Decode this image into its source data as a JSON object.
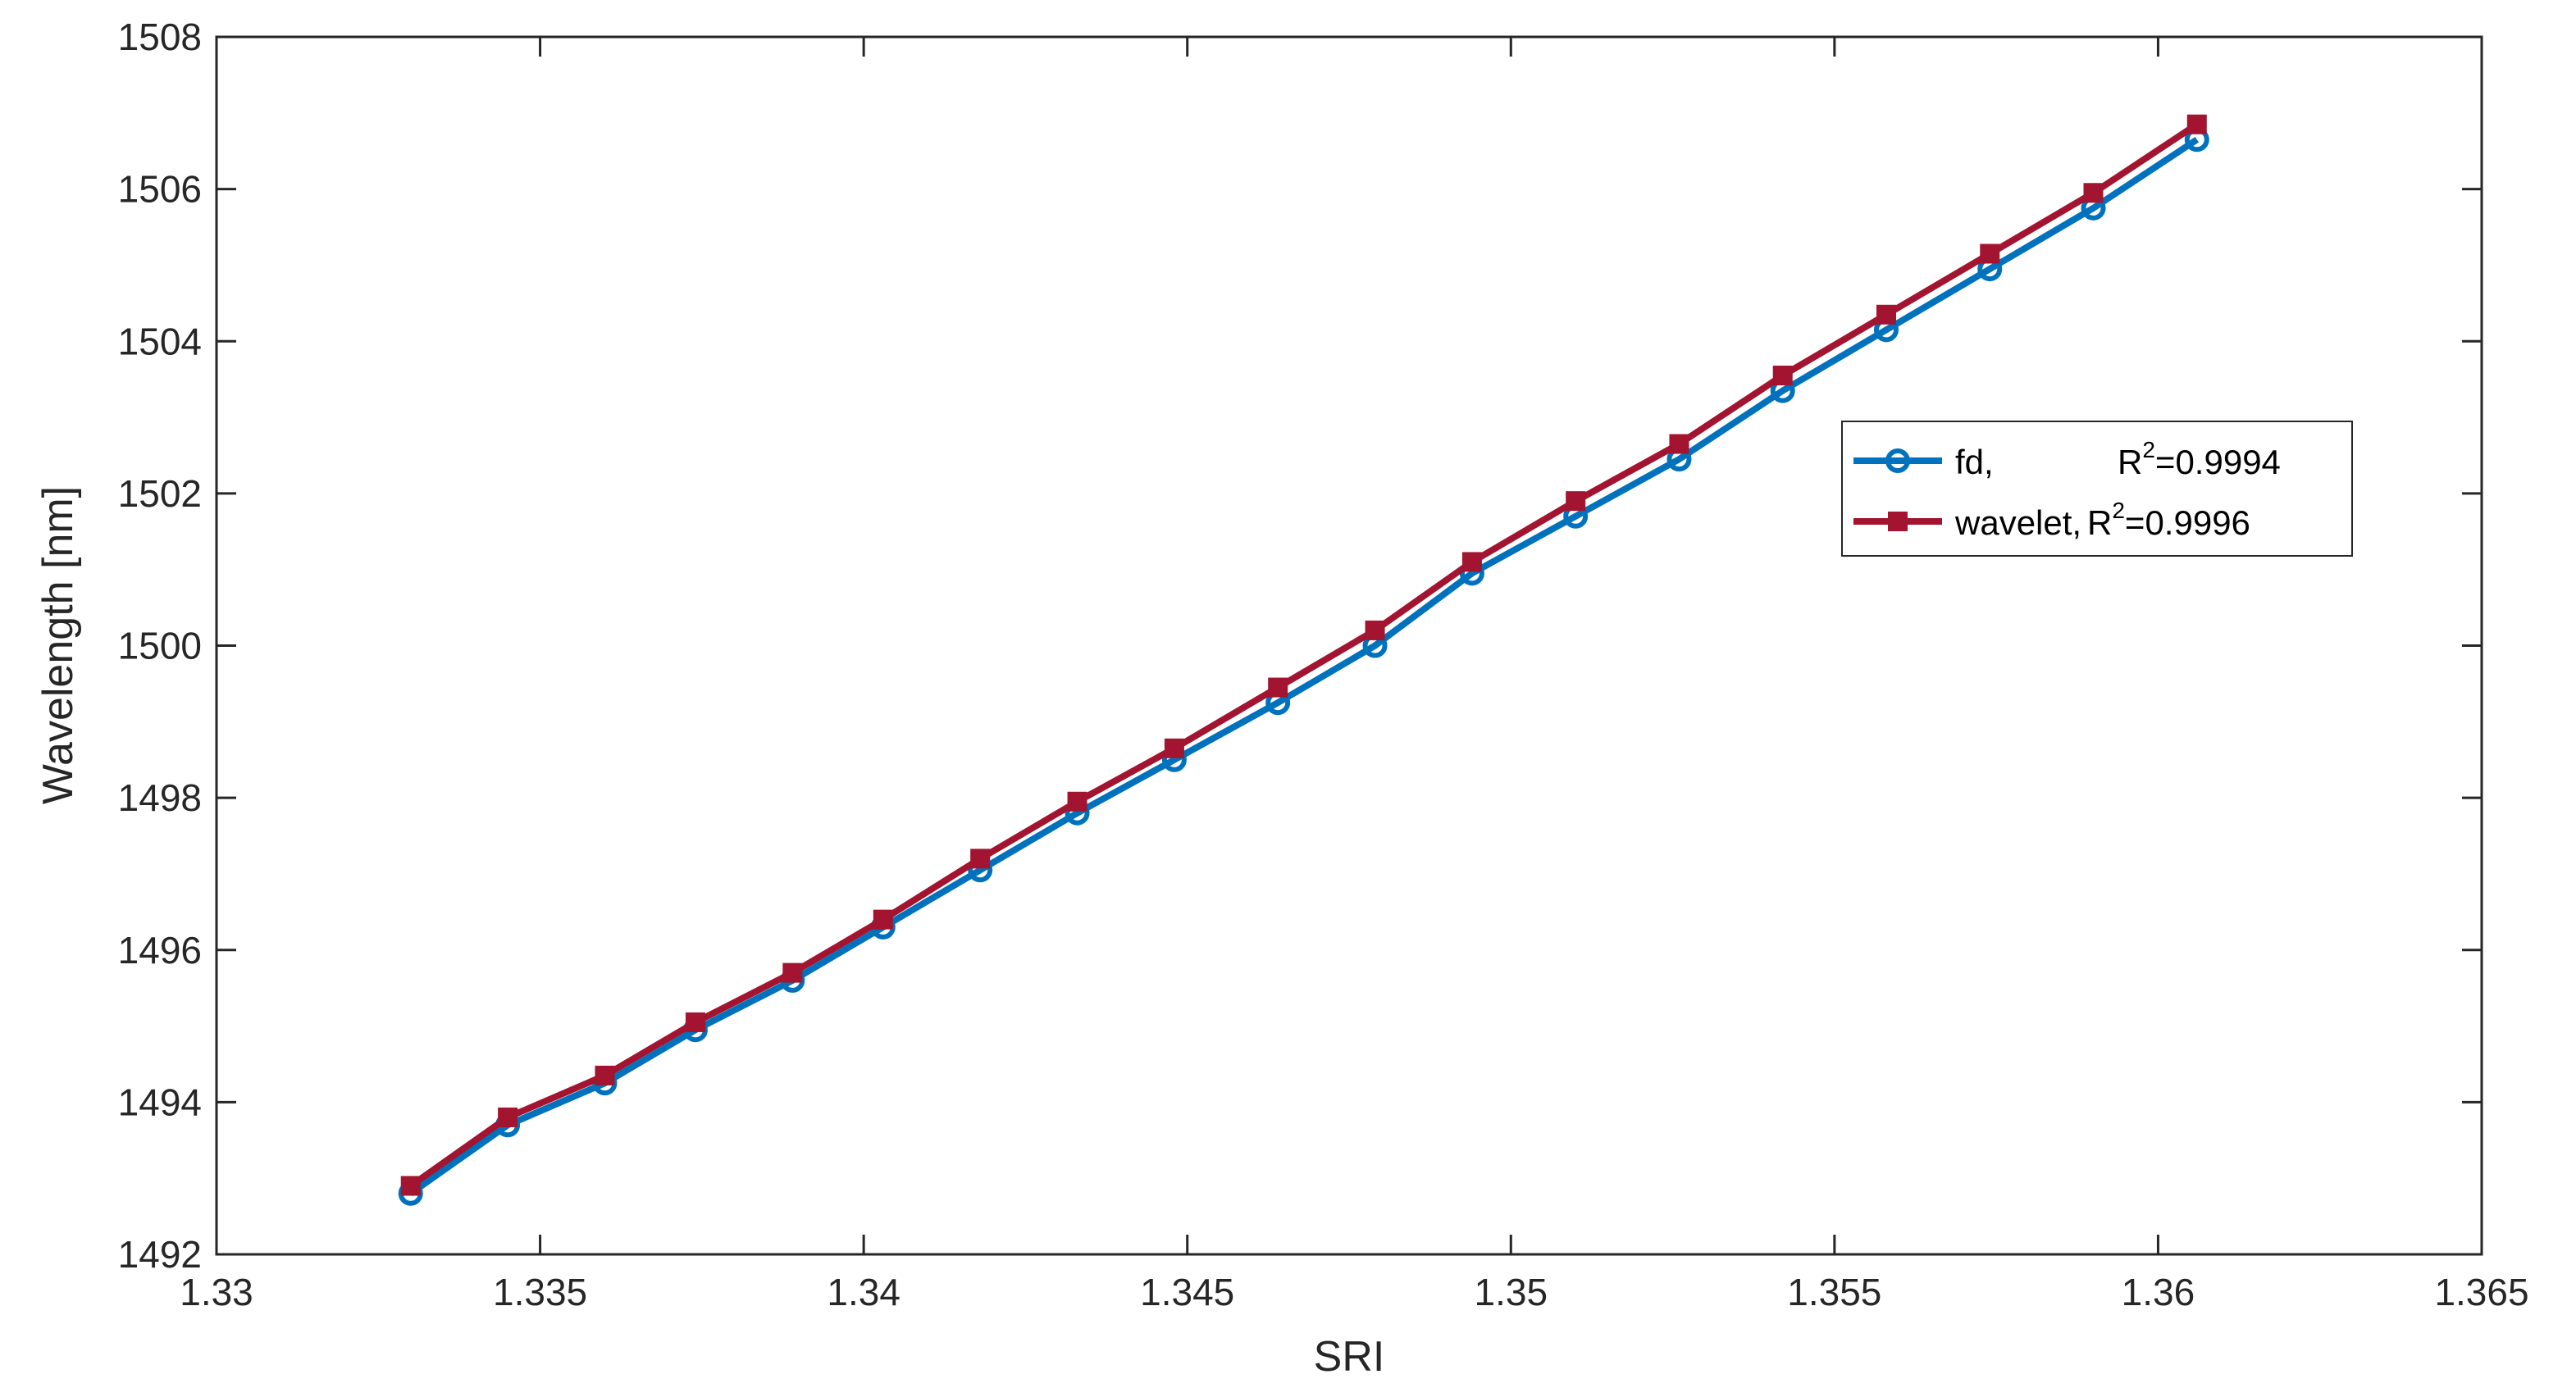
{
  "chart_data": {
    "type": "line",
    "title": "",
    "xlabel": "SRI",
    "ylabel": "Wavelength [nm]",
    "xlim": [
      1.33,
      1.365
    ],
    "ylim": [
      1492,
      1508
    ],
    "xticks": [
      "1.33",
      "1.335",
      "1.34",
      "1.345",
      "1.35",
      "1.355",
      "1.36",
      "1.365"
    ],
    "yticks": [
      "1492",
      "1494",
      "1496",
      "1498",
      "1500",
      "1502",
      "1504",
      "1506",
      "1508"
    ],
    "grid": false,
    "legend_position": "right",
    "series": [
      {
        "name": "fd,",
        "r2_label": "R",
        "r2_sup": "2",
        "r2_value": "=0.9994",
        "color": "#0072BD",
        "marker": "circle",
        "x": [
          1.333,
          1.3345,
          1.336,
          1.3374,
          1.3389,
          1.3403,
          1.3418,
          1.3433,
          1.3448,
          1.3464,
          1.3479,
          1.3494,
          1.351,
          1.3526,
          1.3542,
          1.3558,
          1.3574,
          1.359,
          1.3606
        ],
        "y": [
          1492.8,
          1493.7,
          1494.25,
          1494.95,
          1495.6,
          1496.3,
          1497.05,
          1497.8,
          1498.5,
          1499.25,
          1500.0,
          1500.95,
          1501.7,
          1502.45,
          1503.35,
          1504.15,
          1504.95,
          1505.75,
          1506.65
        ]
      },
      {
        "name": "wavelet,",
        "r2_label": "R",
        "r2_sup": "2",
        "r2_value": "=0.9996",
        "color": "#A2142F",
        "marker": "square",
        "x": [
          1.333,
          1.3345,
          1.336,
          1.3374,
          1.3389,
          1.3403,
          1.3418,
          1.3433,
          1.3448,
          1.3464,
          1.3479,
          1.3494,
          1.351,
          1.3526,
          1.3542,
          1.3558,
          1.3574,
          1.359,
          1.3606
        ],
        "y": [
          1492.9,
          1493.8,
          1494.35,
          1495.05,
          1495.7,
          1496.4,
          1497.2,
          1497.95,
          1498.65,
          1499.45,
          1500.2,
          1501.1,
          1501.9,
          1502.65,
          1503.55,
          1504.35,
          1505.15,
          1505.95,
          1506.85
        ]
      }
    ]
  }
}
